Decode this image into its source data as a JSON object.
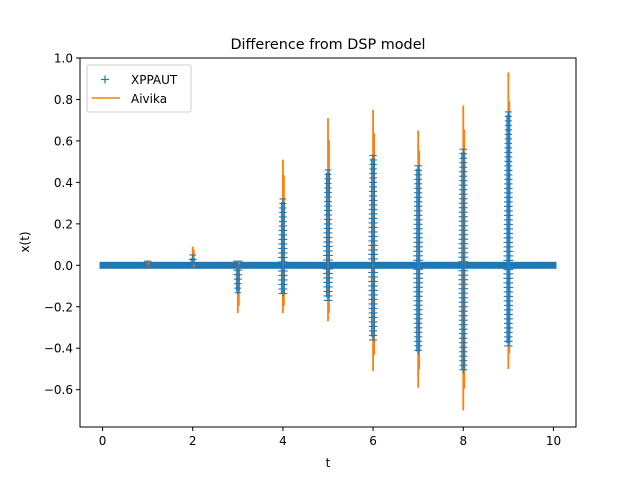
{
  "chart_data": {
    "type": "line",
    "title": "Difference from DSP model",
    "xlabel": "t",
    "ylabel": "x(t)",
    "xlim": [
      -0.5,
      10.5
    ],
    "ylim": [
      -0.78,
      1.0
    ],
    "x_ticks": [
      0,
      2,
      4,
      6,
      8,
      10
    ],
    "x_tick_labels": [
      "0",
      "2",
      "4",
      "6",
      "8",
      "10"
    ],
    "y_ticks": [
      -0.6,
      -0.4,
      -0.2,
      0.0,
      0.2,
      0.4,
      0.6,
      0.8,
      1.0
    ],
    "y_tick_labels": [
      "−0.6",
      "−0.4",
      "−0.2",
      "0.0",
      "0.2",
      "0.4",
      "0.6",
      "0.8",
      "1.0"
    ],
    "legend": {
      "position": "upper-left"
    },
    "series": [
      {
        "name": "XPPAUT",
        "style": "markers-plus",
        "color": "#1f77b4",
        "baseline": {
          "x": [
            0,
            10
          ],
          "y": 0.0
        },
        "bursts": [
          {
            "t": 1.0,
            "min": -0.01,
            "max": 0.02
          },
          {
            "t": 2.0,
            "min": -0.01,
            "max": 0.05
          },
          {
            "t": 3.0,
            "min": -0.14,
            "max": 0.02
          },
          {
            "t": 4.0,
            "min": -0.15,
            "max": 0.32
          },
          {
            "t": 5.0,
            "min": -0.17,
            "max": 0.46
          },
          {
            "t": 6.0,
            "min": -0.36,
            "max": 0.53
          },
          {
            "t": 7.0,
            "min": -0.43,
            "max": 0.48
          },
          {
            "t": 8.0,
            "min": -0.52,
            "max": 0.56
          },
          {
            "t": 9.0,
            "min": -0.39,
            "max": 0.74
          }
        ]
      },
      {
        "name": "Aivika",
        "style": "line",
        "color": "#ff7f0e",
        "bursts": [
          {
            "t": 1.0,
            "min": -0.01,
            "max": 0.02
          },
          {
            "t": 2.0,
            "min": -0.01,
            "max": 0.09
          },
          {
            "t": 3.0,
            "min": -0.23,
            "max": 0.02
          },
          {
            "t": 4.0,
            "min": -0.23,
            "max": 0.51
          },
          {
            "t": 5.0,
            "min": -0.27,
            "max": 0.71
          },
          {
            "t": 6.0,
            "min": -0.51,
            "max": 0.75
          },
          {
            "t": 7.0,
            "min": -0.59,
            "max": 0.65
          },
          {
            "t": 8.0,
            "min": -0.7,
            "max": 0.77
          },
          {
            "t": 9.0,
            "min": -0.5,
            "max": 0.93
          }
        ]
      }
    ]
  }
}
